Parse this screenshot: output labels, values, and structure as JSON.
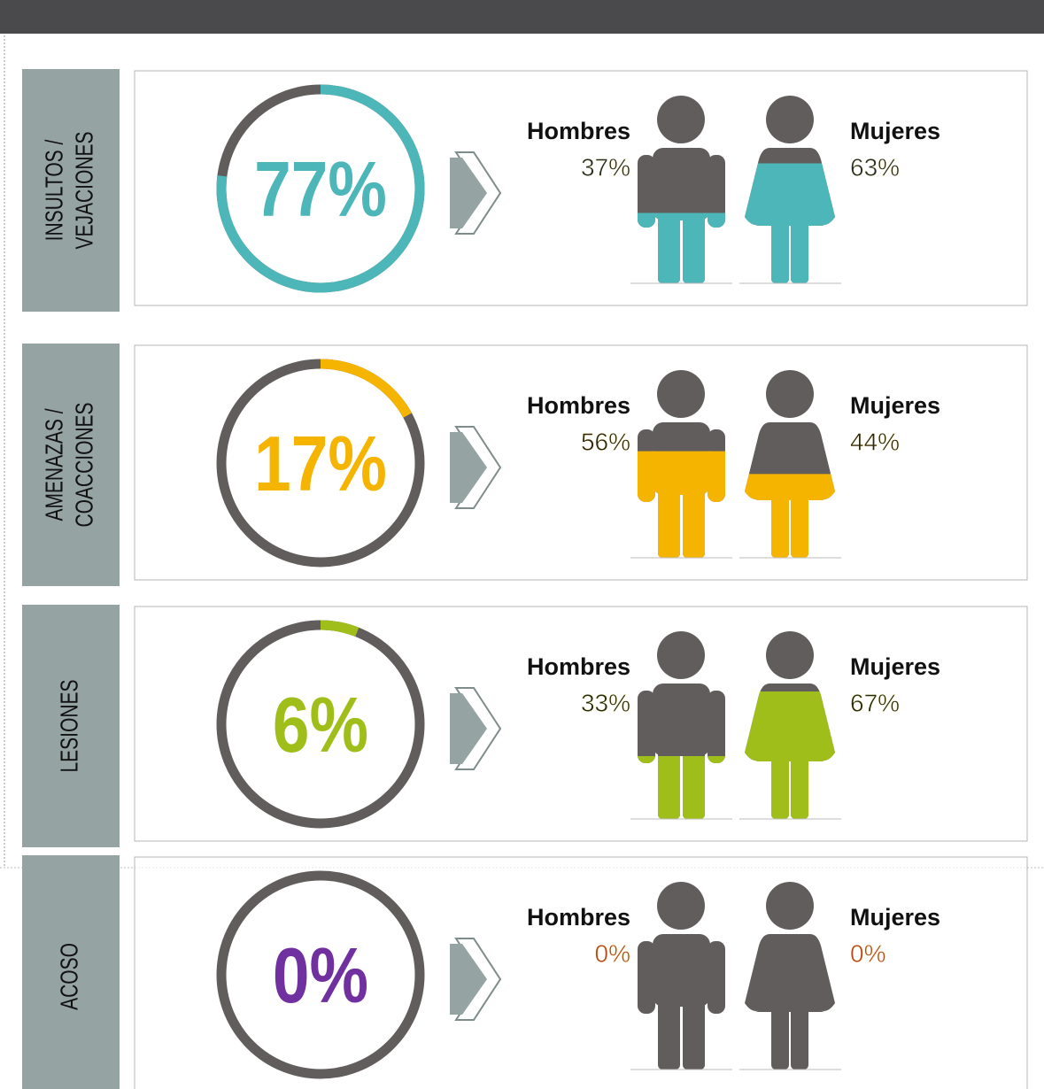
{
  "chart_data": [
    {
      "type": "donut",
      "title": [
        "INSULTOS /",
        "VEJACIONES"
      ],
      "value": 77,
      "value_label": "77%",
      "color": "#4db6b8",
      "categories": [
        "Hombres",
        "Mujeres"
      ],
      "values": [
        37,
        63
      ],
      "value_labels": [
        "37%",
        "63%"
      ],
      "label_color": "#1f2a2a"
    },
    {
      "type": "donut",
      "title": [
        "AMENAZAS /",
        "COACCIONES"
      ],
      "value": 17,
      "value_label": "17%",
      "color": "#f5b400",
      "categories": [
        "Hombres",
        "Mujeres"
      ],
      "values": [
        56,
        44
      ],
      "value_labels": [
        "56%",
        "44%"
      ],
      "label_color": "#2a2410"
    },
    {
      "type": "donut",
      "title": [
        "LESIONES"
      ],
      "value": 6,
      "value_label": "6%",
      "color": "#a0be1a",
      "categories": [
        "Hombres",
        "Mujeres"
      ],
      "values": [
        33,
        67
      ],
      "value_labels": [
        "33%",
        "67%"
      ],
      "label_color": "#222a10"
    },
    {
      "type": "donut",
      "title": [
        "ACOSO"
      ],
      "value": 0,
      "value_label": "0%",
      "color": "#a0be1a",
      "value_label_color": "#7030a0",
      "categories": [
        "Hombres",
        "Mujeres"
      ],
      "values": [
        0,
        0
      ],
      "value_labels": [
        "0%",
        "0%"
      ],
      "label_color": "#b5451b"
    }
  ]
}
